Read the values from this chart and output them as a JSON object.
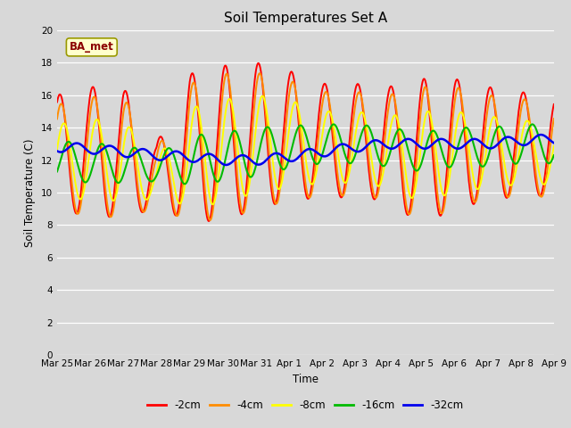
{
  "title": "Soil Temperatures Set A",
  "xlabel": "Time",
  "ylabel": "Soil Temperature (C)",
  "ylim": [
    0,
    20
  ],
  "yticks": [
    0,
    2,
    4,
    6,
    8,
    10,
    12,
    14,
    16,
    18,
    20
  ],
  "annotation_text": "BA_met",
  "annotation_color": "#8B0000",
  "annotation_bg": "#FFFFCC",
  "bg_color": "#D8D8D8",
  "series_colors": [
    "#FF0000",
    "#FF8C00",
    "#FFFF00",
    "#00BB00",
    "#0000EE"
  ],
  "series_labels": [
    "-2cm",
    "-4cm",
    "-8cm",
    "-16cm",
    "-32cm"
  ],
  "xtick_labels": [
    "Mar 25",
    "Mar 26",
    "Mar 27",
    "Mar 28",
    "Mar 29",
    "Mar 30",
    "Mar 31",
    "Apr 1",
    "Apr 2",
    "Apr 3",
    "Apr 4",
    "Apr 5",
    "Apr 6",
    "Apr 7",
    "Apr 8",
    "Apr 9"
  ]
}
